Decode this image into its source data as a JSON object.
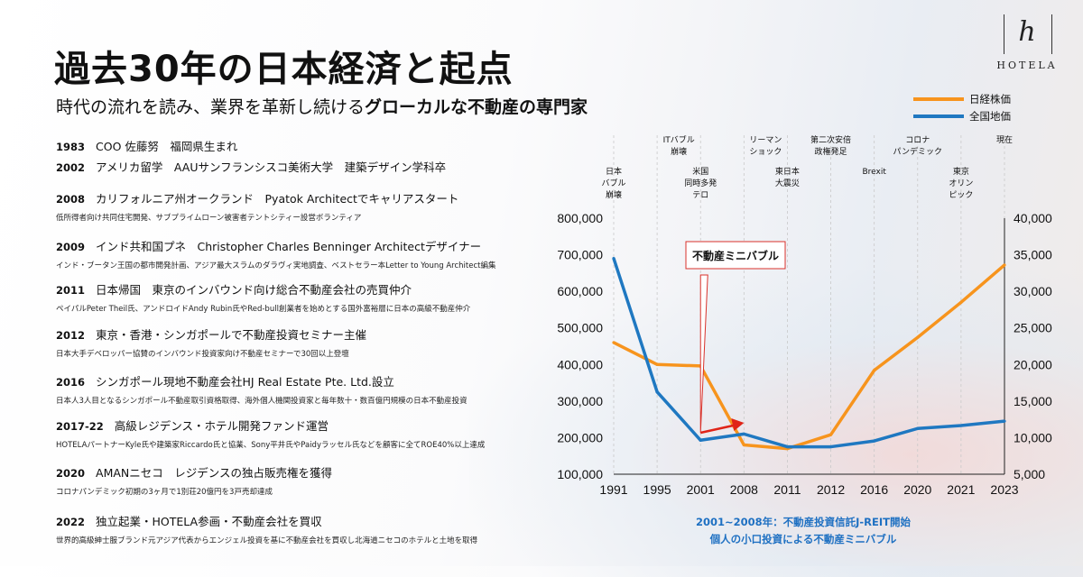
{
  "header": {
    "title": "過去30年の日本経済と起点",
    "subtitle_plain": "時代の流れを読み、業界を革新し続ける",
    "subtitle_bold": "グローカルな不動産の専門家"
  },
  "logo": {
    "mark": "h",
    "word": "HOTELA"
  },
  "timeline": [
    {
      "year": "1983",
      "text": "COO 佐藤努　福岡県生まれ",
      "sub": ""
    },
    {
      "year": "2002",
      "text": "アメリカ留学　AAUサンフランシスコ美術大学　建築デザイン学科卒",
      "sub": ""
    },
    {
      "year": "2008",
      "text": "カリフォルニア州オークランド　Pyatok Architectでキャリアスタート",
      "sub": "低所得者向け共同住宅開発、サブプライムローン被害者テントシティー設営ボランティア"
    },
    {
      "year": "2009",
      "text": "インド共和国プネ　Christopher Charles Benninger Architectデザイナー",
      "sub": "インド・ブータン王国の都市開発計画、アジア最大スラムのダラヴィ実地調査、ベストセラー本Letter to Young Architect編集"
    },
    {
      "year": "2011",
      "text": "日本帰国　東京のインバウンド向け総合不動産会社の売買仲介",
      "sub": "ペイパルPeter Theil氏、アンドロイドAndy Rubin氏やRed-bull創業者を始めとする国外富裕層に日本の高級不動産仲介"
    },
    {
      "year": "2012",
      "text": "東京・香港・シンガポールで不動産投資セミナー主催",
      "sub": "日本大手デベロッパー協賛のインバウンド投資家向け不動産セミナーで30回以上登壇"
    },
    {
      "year": "2016",
      "text": "シンガポール現地不動産会社HJ Real Estate Pte. Ltd.設立",
      "sub": "日本人3人目となるシンガポール不動産取引資格取得、海外個人機関投資家と毎年数十・数百億円規模の日本不動産投資"
    },
    {
      "year": "2017-22",
      "text": "高級レジデンス・ホテル開発ファンド運営",
      "sub": "HOTELAパートナーKyle氏や建築家Riccardo氏と協業、Sony平井氏やPaidyラッセル氏などを顧客に全てROE40%以上達成"
    },
    {
      "year": "2020",
      "text": "AMANニセコ　レジデンスの独占販売権を獲得",
      "sub": "コロナパンデミック初期の3ヶ月で1別荘20億円を3戸売却達成"
    },
    {
      "year": "2022",
      "text": "独立起業・HOTELA参画・不動産会社を買収",
      "sub": "世界的高級紳士服ブランド元アジア代表からエンジェル投資を基に不動産会社を買収し北海道ニセコのホテルと土地を取得"
    }
  ],
  "legend": [
    {
      "label": "日経株価",
      "color": "#f7941d"
    },
    {
      "label": "全国地価",
      "color": "#1f78c1"
    }
  ],
  "events": [
    {
      "text": "日本\nバブル\n崩壊",
      "at": "1991",
      "row": "low"
    },
    {
      "text": "ITバブル\n崩壊",
      "at": "1995-2001",
      "row": "high"
    },
    {
      "text": "米国\n同時多発\nテロ",
      "at": "2001",
      "row": "low"
    },
    {
      "text": "リーマン\nショック",
      "at": "2008-2011",
      "row": "high"
    },
    {
      "text": "東日本\n大震災",
      "at": "2011",
      "row": "low"
    },
    {
      "text": "第二次安倍\n政権発足",
      "at": "2012",
      "row": "high"
    },
    {
      "text": "Brexit",
      "at": "2016",
      "row": "low"
    },
    {
      "text": "コロナ\nパンデミック",
      "at": "2020",
      "row": "high"
    },
    {
      "text": "東京\nオリン\nピック",
      "at": "2021",
      "row": "low"
    },
    {
      "text": "現在",
      "at": "2023",
      "row": "high"
    }
  ],
  "chart_data": {
    "type": "line",
    "categories": [
      "1991",
      "1995",
      "2001",
      "2008",
      "2011",
      "2012",
      "2016",
      "2020",
      "2021",
      "2023"
    ],
    "series": [
      {
        "name": "日経株価",
        "axis": "right",
        "color": "#f7941d",
        "values": [
          23000,
          20000,
          19800,
          9000,
          8500,
          10400,
          19200,
          23700,
          28500,
          33600
        ]
      },
      {
        "name": "全国地価",
        "axis": "left",
        "color": "#1f78c1",
        "values": [
          690000,
          325000,
          193000,
          210000,
          175000,
          175000,
          191000,
          225000,
          233000,
          245000
        ]
      }
    ],
    "ylim_left": [
      100000,
      800000
    ],
    "ylim_right": [
      5000,
      40000
    ],
    "yticks_left": [
      "800,000",
      "700,000",
      "600,000",
      "500,000",
      "400,000",
      "300,000",
      "200,000",
      "100,000"
    ],
    "yticks_right": [
      "40,000",
      "35,000",
      "30,000",
      "25,000",
      "20,000",
      "15,000",
      "10,000",
      "5,000"
    ],
    "annotation": {
      "label": "不動産ミニバブル",
      "from": "2001",
      "to": "2008"
    },
    "grid": "vertical dashed",
    "legend_position": "top-right"
  },
  "note": {
    "line1": "2001~2008年：不動産投資信託J-REIT開始",
    "line2": "個人の小口投資による不動産ミニバブル"
  }
}
